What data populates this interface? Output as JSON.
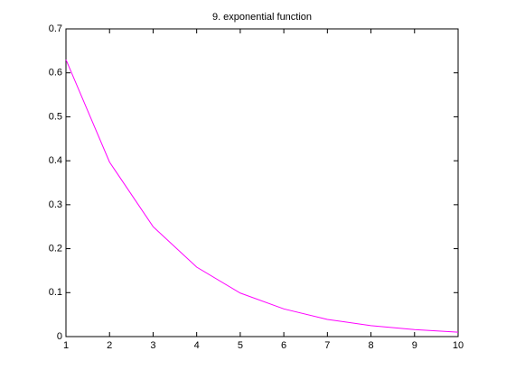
{
  "chart_data": {
    "type": "line",
    "title": "9. exponential function",
    "x": [
      1,
      2,
      3,
      4,
      5,
      6,
      7,
      8,
      9,
      10
    ],
    "series": [
      {
        "color": "#ff00ff",
        "values": [
          0.63,
          0.397,
          0.25,
          0.158,
          0.099,
          0.063,
          0.039,
          0.025,
          0.016,
          0.01
        ]
      }
    ],
    "xlim": [
      1,
      10
    ],
    "xticks": [
      1,
      2,
      3,
      4,
      5,
      6,
      7,
      8,
      9,
      10
    ],
    "ylim": [
      0,
      0.7
    ],
    "yticks": [
      0,
      0.1,
      0.2,
      0.3,
      0.4,
      0.5,
      0.6,
      0.7
    ],
    "grid": false
  }
}
